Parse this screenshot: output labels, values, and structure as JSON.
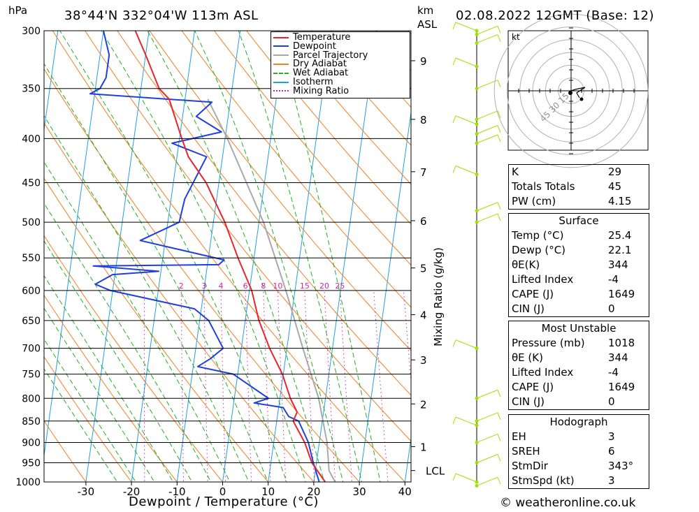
{
  "header": {
    "location": "38°44'N 332°04'W 113m ASL",
    "datetime": "02.08.2022 12GMT (Base: 12)",
    "hpa_label": "hPa",
    "km_label": "km",
    "asl_label": "ASL"
  },
  "legend": [
    "Temperature",
    "Dewpoint",
    "Parcel Trajectory",
    "Dry Adiabat",
    "Wet Adiabat",
    "Isotherm",
    "Mixing Ratio"
  ],
  "colors": {
    "temperature": "#e8252a",
    "dewpoint": "#1f3fe0",
    "parcel": "#a9a9a9",
    "dry_adiabat": "#f08020",
    "wet_adiabat": "#20b020",
    "isotherm": "#1ea0e8",
    "mixing_ratio": "#d81fa8",
    "wind": "#a0e000"
  },
  "chart_data": {
    "type": "line",
    "title": "",
    "xlabel": "Dewpoint / Temperature (°C)",
    "ylabel": "hPa",
    "ylabel_right": "Mixing Ratio (g/kg)",
    "xlim": [
      -40,
      40
    ],
    "ylim": [
      1000,
      300
    ],
    "pressure_levels": [
      300,
      350,
      400,
      450,
      500,
      550,
      600,
      650,
      700,
      750,
      800,
      850,
      900,
      950,
      1000
    ],
    "temp_ticks": [
      -30,
      -20,
      -10,
      0,
      10,
      20,
      30,
      40
    ],
    "mixing_ratio_labels": [
      "2",
      "3",
      "4",
      "6",
      "8",
      "10",
      "15",
      "20",
      "25"
    ],
    "km_ticks": [
      {
        "label": "9",
        "p": 325
      },
      {
        "label": "8",
        "p": 380
      },
      {
        "label": "7",
        "p": 437
      },
      {
        "label": "6",
        "p": 498
      },
      {
        "label": "5",
        "p": 565
      },
      {
        "label": "4",
        "p": 640
      },
      {
        "label": "3",
        "p": 722
      },
      {
        "label": "2",
        "p": 812
      },
      {
        "label": "1",
        "p": 910
      },
      {
        "label": "LCL",
        "p": 970
      }
    ],
    "series": [
      {
        "name": "Temperature",
        "points": [
          [
            1013,
            25.4
          ],
          [
            1000,
            22.5
          ],
          [
            950,
            19
          ],
          [
            900,
            16.8
          ],
          [
            850,
            13.6
          ],
          [
            830,
            14.2
          ],
          [
            800,
            12.3
          ],
          [
            750,
            9.8
          ],
          [
            700,
            6.2
          ],
          [
            650,
            3.0
          ],
          [
            600,
            0.5
          ],
          [
            550,
            -3.5
          ],
          [
            500,
            -7.5
          ],
          [
            450,
            -12.8
          ],
          [
            420,
            -17.5
          ],
          [
            400,
            -19.5
          ],
          [
            360,
            -23.5
          ],
          [
            350,
            -26
          ],
          [
            320,
            -30
          ],
          [
            300,
            -33
          ]
        ]
      },
      {
        "name": "Dewpoint",
        "points": [
          [
            1013,
            22.1
          ],
          [
            1000,
            21.2
          ],
          [
            950,
            19.3
          ],
          [
            900,
            17.6
          ],
          [
            850,
            14.8
          ],
          [
            840,
            12.5
          ],
          [
            820,
            11.0
          ],
          [
            810,
            4.5
          ],
          [
            800,
            7.5
          ],
          [
            750,
            -1.0
          ],
          [
            735,
            -9.0
          ],
          [
            720,
            -6.5
          ],
          [
            700,
            -4.0
          ],
          [
            650,
            -8.0
          ],
          [
            630,
            -11.5
          ],
          [
            600,
            -30.5
          ],
          [
            590,
            -34.0
          ],
          [
            575,
            -30.5
          ],
          [
            570,
            -20.5
          ],
          [
            562,
            -35.0
          ],
          [
            560,
            -7.5
          ],
          [
            553,
            -6.5
          ],
          [
            525,
            -25.5
          ],
          [
            500,
            -17.5
          ],
          [
            470,
            -17.0
          ],
          [
            420,
            -13.5
          ],
          [
            405,
            -21.5
          ],
          [
            393,
            -11.0
          ],
          [
            377,
            -17.0
          ],
          [
            363,
            -14.0
          ],
          [
            355,
            -41.0
          ],
          [
            350,
            -39.0
          ],
          [
            340,
            -38.0
          ],
          [
            320,
            -38.0
          ],
          [
            300,
            -40.0
          ]
        ]
      },
      {
        "name": "Parcel Trajectory",
        "points": [
          [
            1013,
            25.4
          ],
          [
            970,
            23.0
          ],
          [
            900,
            21.7
          ],
          [
            800,
            18.5
          ],
          [
            700,
            13.5
          ],
          [
            600,
            8.0
          ],
          [
            500,
            1.0
          ],
          [
            400,
            -9.5
          ],
          [
            360,
            -15.0
          ]
        ]
      }
    ],
    "wind_barbs_p": [
      300,
      303,
      310,
      330,
      350,
      380,
      385,
      395,
      405,
      440,
      485,
      500,
      700,
      800,
      850,
      860,
      900,
      950,
      1000,
      1013
    ]
  },
  "hodograph": {
    "unit_label": "kt",
    "rings": [
      "15",
      "30",
      "45"
    ]
  },
  "indices": [
    [
      "K",
      "29"
    ],
    [
      "Totals Totals",
      "45"
    ],
    [
      "PW (cm)",
      "4.15"
    ]
  ],
  "surface": {
    "title": "Surface",
    "rows": [
      [
        "Temp (°C)",
        "25.4"
      ],
      [
        "Dewp (°C)",
        "22.1"
      ],
      [
        "θE(K)",
        "344"
      ],
      [
        "Lifted Index",
        "-4"
      ],
      [
        "CAPE (J)",
        "1649"
      ],
      [
        "CIN (J)",
        "0"
      ]
    ]
  },
  "most_unstable": {
    "title": "Most Unstable",
    "rows": [
      [
        "Pressure (mb)",
        "1018"
      ],
      [
        "θE (K)",
        "344"
      ],
      [
        "Lifted Index",
        "-4"
      ],
      [
        "CAPE (J)",
        "1649"
      ],
      [
        "CIN (J)",
        "0"
      ]
    ]
  },
  "hodograph_stats": {
    "title": "Hodograph",
    "rows": [
      [
        "EH",
        "3"
      ],
      [
        "SREH",
        "6"
      ],
      [
        "StmDir",
        "343°"
      ],
      [
        "StmSpd (kt)",
        "3"
      ]
    ]
  },
  "footer": {
    "copyright": "© weatheronline.co.uk"
  }
}
